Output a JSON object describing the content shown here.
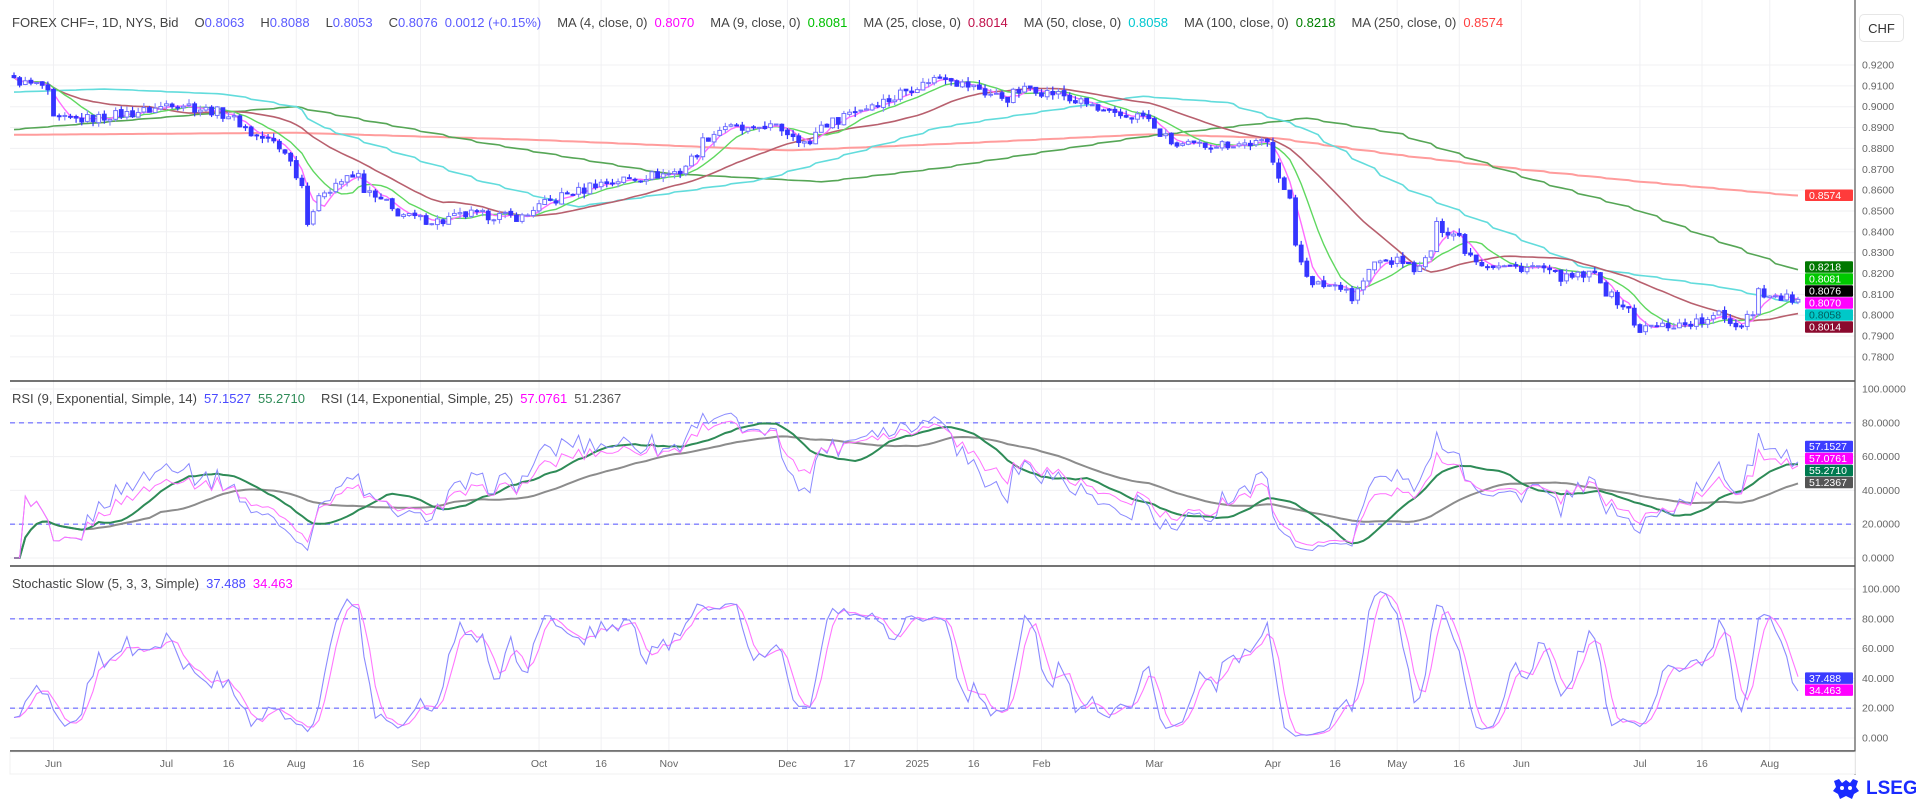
{
  "header": {
    "symbol": "FOREX CHF=, 1D, NYS, Bid",
    "open_prefix": "O",
    "open": "0.8063",
    "high_prefix": "H",
    "high": "0.8088",
    "low_prefix": "L",
    "low": "0.8053",
    "close_prefix": "C",
    "close": "0.8076",
    "change": "0.0012 (+0.15%)"
  },
  "moving_averages": [
    {
      "label": "MA (4, close, 0)",
      "value": "0.8070",
      "color": "#ff00ff",
      "line_color": "#ff6cff"
    },
    {
      "label": "MA (9, close, 0)",
      "value": "0.8081",
      "color": "#00c000",
      "line_color": "#5fd85f"
    },
    {
      "label": "MA (25, close, 0)",
      "value": "0.8014",
      "color": "#c0104a",
      "line_color": "#b8606e"
    },
    {
      "label": "MA (50, close, 0)",
      "value": "0.8058",
      "color": "#00c8d0",
      "line_color": "#62dcdc"
    },
    {
      "label": "MA (100, close, 0)",
      "value": "0.8218",
      "color": "#008000",
      "line_color": "#56a656"
    },
    {
      "label": "MA (250, close, 0)",
      "value": "0.8574",
      "color": "#ff4040",
      "line_color": "#ff9c9c"
    }
  ],
  "currency_button": "CHF",
  "price_tags": [
    {
      "value": "0.8574",
      "color": "#ff3b3b",
      "text_color": "#ffffff"
    },
    {
      "value": "0.8218",
      "color": "#007800",
      "text_color": "#ffffff"
    },
    {
      "value": "0.8081",
      "color": "#00c800",
      "text_color": "#ffffff"
    },
    {
      "value": "0.8076",
      "color": "#000000",
      "text_color": "#ffffff"
    },
    {
      "value": "0.8070",
      "color": "#ff00ff",
      "text_color": "#ffffff"
    },
    {
      "value": "0.8058",
      "color": "#00c8c8",
      "text_color": "#006060"
    },
    {
      "value": "0.8014",
      "color": "#8b0a2e",
      "text_color": "#ffffff"
    }
  ],
  "rsi": {
    "label_1": "RSI (9, Exponential, Simple, 14)",
    "value_1": "57.1527",
    "value_1_ma": "55.2710",
    "label_2": "RSI (14, Exponential, Simple, 25)",
    "value_2": "57.0761",
    "value_2_ma": "51.2367",
    "colors": {
      "rsi_1": "#4a4aff",
      "rsi_1_line": "#8a8aff",
      "rsi_1_ma": "#2e8b57",
      "rsi_2": "#ff00ff",
      "rsi_2_line": "#ff70ff",
      "rsi_2_ma": "#555555",
      "rsi_2_ma_line": "#8c8c8c"
    },
    "tags": [
      {
        "value": "57.1527",
        "color": "#3c3cff"
      },
      {
        "value": "57.0761",
        "color": "#ff00ff"
      },
      {
        "value": "55.2710",
        "color": "#007a50"
      },
      {
        "value": "51.2367",
        "color": "#555555"
      }
    ]
  },
  "stochastic": {
    "label": "Stochastic Slow (5, 3, 3, Simple)",
    "value_k": "37.488",
    "value_d": "34.463",
    "colors": {
      "k": "#4a4aff",
      "k_line": "#8a8aff",
      "d": "#ff00ff",
      "d_line": "#ff77ff"
    },
    "tags": [
      {
        "value": "37.488",
        "color": "#3c3cff"
      },
      {
        "value": "34.463",
        "color": "#ff00ff"
      }
    ]
  },
  "logo": "LSEG",
  "chart_data": {
    "type": "candlestick",
    "candle_color": "#3535ff",
    "date_range": [
      "2024-05-23",
      "2025-08-08"
    ],
    "last_bar": {
      "open": 0.8063,
      "high": 0.8088,
      "low": 0.8053,
      "close": 0.8076
    },
    "close_keypoints": [
      [
        "2024-05-23",
        0.9125
      ],
      [
        "2024-05-30",
        0.91
      ],
      [
        "2024-06-03",
        0.8937
      ],
      [
        "2024-06-10",
        0.894
      ],
      [
        "2024-06-25",
        0.898
      ],
      [
        "2024-07-02",
        0.902
      ],
      [
        "2024-07-16",
        0.896
      ],
      [
        "2024-07-19",
        0.89
      ],
      [
        "2024-07-30",
        0.879
      ],
      [
        "2024-08-05",
        0.8457
      ],
      [
        "2024-08-08",
        0.86
      ],
      [
        "2024-08-16",
        0.867
      ],
      [
        "2024-08-21",
        0.856
      ],
      [
        "2024-08-29",
        0.847
      ],
      [
        "2024-09-06",
        0.845
      ],
      [
        "2024-09-13",
        0.8485
      ],
      [
        "2024-09-26",
        0.847
      ],
      [
        "2024-10-03",
        0.8545
      ],
      [
        "2024-10-15",
        0.863
      ],
      [
        "2024-10-25",
        0.866
      ],
      [
        "2024-11-05",
        0.869
      ],
      [
        "2024-11-08",
        0.878
      ],
      [
        "2024-11-15",
        0.891
      ],
      [
        "2024-11-22",
        0.888
      ],
      [
        "2024-11-26",
        0.891
      ],
      [
        "2024-12-03",
        0.887
      ],
      [
        "2024-12-06",
        0.881
      ],
      [
        "2024-12-10",
        0.891
      ],
      [
        "2024-12-18",
        0.8984
      ],
      [
        "2024-12-27",
        0.904
      ],
      [
        "2025-01-02",
        0.91
      ],
      [
        "2025-01-09",
        0.9148
      ],
      [
        "2025-01-15",
        0.91
      ],
      [
        "2025-01-24",
        0.904
      ],
      [
        "2025-01-30",
        0.909
      ],
      [
        "2025-02-06",
        0.906
      ],
      [
        "2025-02-13",
        0.9013
      ],
      [
        "2025-02-20",
        0.8955
      ],
      [
        "2025-02-27",
        0.8955
      ],
      [
        "2025-03-04",
        0.887
      ],
      [
        "2025-03-07",
        0.881
      ],
      [
        "2025-03-18",
        0.882
      ],
      [
        "2025-03-31",
        0.8826
      ],
      [
        "2025-04-03",
        0.8603
      ],
      [
        "2025-04-04",
        0.8545
      ],
      [
        "2025-04-10",
        0.8135
      ],
      [
        "2025-04-11",
        0.8145
      ],
      [
        "2025-04-17",
        0.8145
      ],
      [
        "2025-04-21",
        0.8077
      ],
      [
        "2025-04-25",
        0.8252
      ],
      [
        "2025-05-02",
        0.826
      ],
      [
        "2025-05-07",
        0.822
      ],
      [
        "2025-05-09",
        0.8312
      ],
      [
        "2025-05-12",
        0.8428
      ],
      [
        "2025-05-16",
        0.838
      ],
      [
        "2025-05-22",
        0.825
      ],
      [
        "2025-05-29",
        0.823
      ],
      [
        "2025-06-05",
        0.823
      ],
      [
        "2025-06-12",
        0.8176
      ],
      [
        "2025-06-19",
        0.8195
      ],
      [
        "2025-06-26",
        0.8047
      ],
      [
        "2025-07-01",
        0.793
      ],
      [
        "2025-07-03",
        0.7945
      ],
      [
        "2025-07-10",
        0.7955
      ],
      [
        "2025-07-17",
        0.797
      ],
      [
        "2025-07-21",
        0.8017
      ],
      [
        "2025-07-24",
        0.795
      ],
      [
        "2025-07-29",
        0.8017
      ],
      [
        "2025-07-30",
        0.8124
      ],
      [
        "2025-08-01",
        0.809
      ],
      [
        "2025-08-08",
        0.8076
      ]
    ],
    "ma_keypoints": {
      "ma50": [
        [
          "2024-05-23",
          0.907
        ],
        [
          "2024-06-15",
          0.9085
        ],
        [
          "2024-07-15",
          0.906
        ],
        [
          "2024-08-01",
          0.9
        ],
        [
          "2024-08-08",
          0.89
        ],
        [
          "2024-09-17",
          0.864
        ],
        [
          "2024-10-10",
          0.852
        ],
        [
          "2024-11-25",
          0.865
        ],
        [
          "2025-01-08",
          0.89
        ],
        [
          "2025-02-27",
          0.905
        ],
        [
          "2025-03-20",
          0.902
        ],
        [
          "2025-04-08",
          0.89
        ],
        [
          "2025-05-02",
          0.8625
        ],
        [
          "2025-06-17",
          0.823
        ],
        [
          "2025-07-21",
          0.8135
        ],
        [
          "2025-08-08",
          0.8058
        ]
      ],
      "ma100": [
        [
          "2024-05-23",
          0.889
        ],
        [
          "2024-08-01",
          0.9
        ],
        [
          "2024-09-17",
          0.8826
        ],
        [
          "2024-11-01",
          0.868
        ],
        [
          "2024-12-10",
          0.864
        ],
        [
          "2025-01-08",
          0.8705
        ],
        [
          "2025-02-27",
          0.8855
        ],
        [
          "2025-04-09",
          0.8945
        ],
        [
          "2025-05-02",
          0.887
        ],
        [
          "2025-06-04",
          0.865
        ],
        [
          "2025-06-30",
          0.8505
        ],
        [
          "2025-08-08",
          0.8218
        ]
      ],
      "ma250": [
        [
          "2024-05-23",
          0.8865
        ],
        [
          "2024-08-01",
          0.8875
        ],
        [
          "2024-10-01",
          0.884
        ],
        [
          "2024-12-01",
          0.879
        ],
        [
          "2025-01-15",
          0.8826
        ],
        [
          "2025-03-01",
          0.8868
        ],
        [
          "2025-04-01",
          0.885
        ],
        [
          "2025-05-01",
          0.877
        ],
        [
          "2025-06-01",
          0.87
        ],
        [
          "2025-07-01",
          0.864
        ],
        [
          "2025-08-08",
          0.8574
        ]
      ]
    },
    "price_axis": {
      "min": 0.78,
      "max": 0.92,
      "ticks": [
        "0.7800",
        "0.7900",
        "0.8000",
        "0.8100",
        "0.8200",
        "0.8300",
        "0.8400",
        "0.8500",
        "0.8600",
        "0.8700",
        "0.8800",
        "0.8900",
        "0.9000",
        "0.9100",
        "0.9200"
      ]
    },
    "rsi_axis": {
      "min": 0,
      "max": 100,
      "ticks": [
        "0.0000",
        "20.0000",
        "40.0000",
        "60.0000",
        "80.0000",
        "100.0000"
      ],
      "levels": [
        80,
        20
      ]
    },
    "stoch_axis": {
      "min": 0,
      "max": 100,
      "ticks": [
        "0.000",
        "20.000",
        "40.000",
        "60.000",
        "80.000",
        "100.000"
      ],
      "levels": [
        80,
        20
      ]
    },
    "x_ticks": [
      {
        "date": "2024-06-03",
        "label": "Jun"
      },
      {
        "date": "2024-07-01",
        "label": "Jul"
      },
      {
        "date": "2024-07-16",
        "label": "16"
      },
      {
        "date": "2024-08-01",
        "label": "Aug"
      },
      {
        "date": "2024-08-16",
        "label": "16"
      },
      {
        "date": "2024-09-02",
        "label": "Sep"
      },
      {
        "date": "2024-10-01",
        "label": "Oct"
      },
      {
        "date": "2024-10-16",
        "label": "16"
      },
      {
        "date": "2024-11-01",
        "label": "Nov"
      },
      {
        "date": "2024-12-02",
        "label": "Dec"
      },
      {
        "date": "2024-12-17",
        "label": "17"
      },
      {
        "date": "2025-01-02",
        "label": "2025"
      },
      {
        "date": "2025-01-16",
        "label": "16"
      },
      {
        "date": "2025-02-03",
        "label": "Feb"
      },
      {
        "date": "2025-03-03",
        "label": "Mar"
      },
      {
        "date": "2025-04-01",
        "label": "Apr"
      },
      {
        "date": "2025-04-16",
        "label": "16"
      },
      {
        "date": "2025-05-01",
        "label": "May"
      },
      {
        "date": "2025-05-16",
        "label": "16"
      },
      {
        "date": "2025-06-02",
        "label": "Jun"
      },
      {
        "date": "2025-07-01",
        "label": "Jul"
      },
      {
        "date": "2025-07-16",
        "label": "16"
      },
      {
        "date": "2025-08-01",
        "label": "Aug"
      }
    ]
  }
}
